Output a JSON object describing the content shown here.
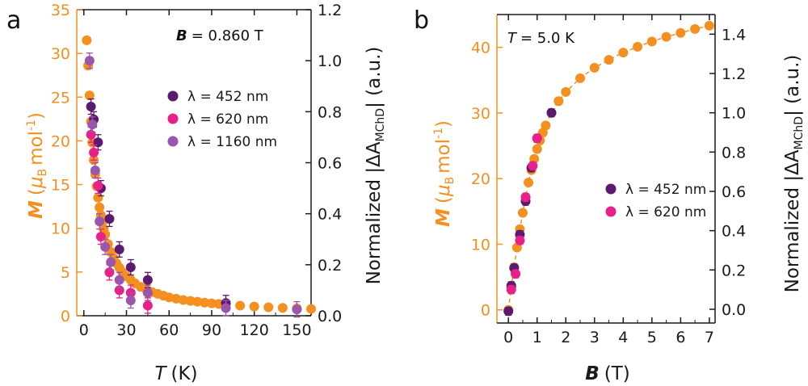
{
  "colors": {
    "magnetization": "#f39020",
    "lambda_452": "#5c1a6e",
    "lambda_620": "#e8208a",
    "lambda_1160": "#9a55ad",
    "axis_black": "#1a1a1a"
  },
  "chart_data": [
    {
      "panel": "a",
      "type": "scatter",
      "annotation": "B = 0.860 T",
      "annotation_var": "B",
      "annotation_value": "= 0.860 T",
      "xlabel_var": "T",
      "xlabel_unit": "(K)",
      "ylabel_left_var": "M",
      "ylabel_left_unit": "(μB mol-1)",
      "ylabel_right": "Normalized |ΔA_MChD| (a.u.)",
      "xlim": [
        -5,
        160
      ],
      "ylim_left": [
        0,
        35
      ],
      "ylim_right": [
        0,
        1.2
      ],
      "xticks": [
        "0",
        "30",
        "60",
        "90",
        "120",
        "150"
      ],
      "xtick_values": [
        0,
        30,
        60,
        90,
        120,
        150
      ],
      "yticks_left": [
        "0",
        "5",
        "10",
        "15",
        "20",
        "25",
        "30",
        "35"
      ],
      "ytick_left_values": [
        0,
        5,
        10,
        15,
        20,
        25,
        30,
        35
      ],
      "yticks_right": [
        "0.0",
        "0.2",
        "0.4",
        "0.6",
        "0.8",
        "1.0",
        "1.2"
      ],
      "ytick_right_values": [
        0,
        0.2,
        0.4,
        0.6,
        0.8,
        1.0,
        1.2
      ],
      "legend": [
        {
          "label": "λ = 452 nm",
          "series": "lambda_452"
        },
        {
          "label": "λ = 620 nm",
          "series": "lambda_620"
        },
        {
          "label": "λ = 1160 nm",
          "series": "lambda_1160"
        }
      ],
      "legend_position": "upper-right",
      "series": [
        {
          "name": "M",
          "axis": "left",
          "color_key": "magnetization",
          "errorbars": false,
          "points": [
            [
              2,
              31.5
            ],
            [
              3,
              28.6
            ],
            [
              4,
              25.2
            ],
            [
              5,
              22.2
            ],
            [
              6,
              19.8
            ],
            [
              7,
              17.8
            ],
            [
              8,
              16.2
            ],
            [
              9,
              14.8
            ],
            [
              10,
              13.5
            ],
            [
              11,
              12.4
            ],
            [
              12,
              11.5
            ],
            [
              13,
              10.7
            ],
            [
              14,
              9.9
            ],
            [
              15,
              9.3
            ],
            [
              17,
              8.2
            ],
            [
              19,
              7.3
            ],
            [
              21,
              6.6
            ],
            [
              23,
              6.0
            ],
            [
              25,
              5.5
            ],
            [
              27,
              5.0
            ],
            [
              30,
              4.5
            ],
            [
              33,
              4.1
            ],
            [
              36,
              3.7
            ],
            [
              40,
              3.3
            ],
            [
              44,
              3.0
            ],
            [
              48,
              2.7
            ],
            [
              52,
              2.5
            ],
            [
              56,
              2.3
            ],
            [
              60,
              2.1
            ],
            [
              65,
              1.95
            ],
            [
              70,
              1.8
            ],
            [
              75,
              1.7
            ],
            [
              80,
              1.6
            ],
            [
              85,
              1.5
            ],
            [
              90,
              1.42
            ],
            [
              95,
              1.35
            ],
            [
              100,
              1.28
            ],
            [
              110,
              1.15
            ],
            [
              120,
              1.05
            ],
            [
              130,
              0.97
            ],
            [
              140,
              0.9
            ],
            [
              150,
              0.84
            ],
            [
              160,
              0.79
            ]
          ]
        },
        {
          "name": "λ = 452 nm",
          "axis": "right",
          "color_key": "lambda_452",
          "errorbars": true,
          "points": [
            [
              5,
              0.82,
              0.03
            ],
            [
              7,
              0.77,
              0.03
            ],
            [
              10,
              0.68,
              0.03
            ],
            [
              12,
              0.5,
              0.03
            ],
            [
              18,
              0.38,
              0.03
            ],
            [
              25,
              0.26,
              0.03
            ],
            [
              33,
              0.19,
              0.03
            ],
            [
              45,
              0.14,
              0.03
            ],
            [
              100,
              0.05,
              0.03
            ]
          ]
        },
        {
          "name": "λ = 620 nm",
          "axis": "right",
          "color_key": "lambda_620",
          "errorbars": true,
          "points": [
            [
              5,
              0.71,
              0.03
            ],
            [
              7,
              0.64,
              0.03
            ],
            [
              10,
              0.51,
              0.03
            ],
            [
              12,
              0.31,
              0.03
            ],
            [
              18,
              0.17,
              0.03
            ],
            [
              25,
              0.1,
              0.03
            ],
            [
              33,
              0.09,
              0.03
            ],
            [
              45,
              0.04,
              0.03
            ]
          ]
        },
        {
          "name": "λ = 1160 nm",
          "axis": "right",
          "color_key": "lambda_1160",
          "errorbars": true,
          "points": [
            [
              4,
              1.0,
              0.03
            ],
            [
              6,
              0.75,
              0.03
            ],
            [
              8,
              0.57,
              0.03
            ],
            [
              11,
              0.37,
              0.03
            ],
            [
              15,
              0.27,
              0.03
            ],
            [
              19,
              0.21,
              0.03
            ],
            [
              25,
              0.14,
              0.03
            ],
            [
              33,
              0.06,
              0.03
            ],
            [
              45,
              0.09,
              0.03
            ],
            [
              100,
              0.03,
              0.03
            ],
            [
              150,
              0.025,
              0.03
            ]
          ]
        }
      ]
    },
    {
      "panel": "b",
      "type": "scatter",
      "annotation": "T = 5.0 K",
      "annotation_var": "T",
      "annotation_value": "= 5.0 K",
      "xlabel_var": "B",
      "xlabel_unit": "(T)",
      "ylabel_left_var": "M",
      "ylabel_left_unit": "(μB mol-1)",
      "ylabel_right": "Normalized |ΔA_MChD| (a.u.)",
      "xlim": [
        -0.4,
        7.2
      ],
      "ylim_left": [
        -2,
        45
      ],
      "ylim_right": [
        -0.07,
        1.5
      ],
      "xticks": [
        "0",
        "1",
        "2",
        "3",
        "4",
        "5",
        "6",
        "7"
      ],
      "xtick_values": [
        0,
        1,
        2,
        3,
        4,
        5,
        6,
        7
      ],
      "yticks_left": [
        "0",
        "10",
        "20",
        "30",
        "40"
      ],
      "ytick_left_values": [
        0,
        10,
        20,
        30,
        40
      ],
      "yticks_right": [
        "0.0",
        "0.2",
        "0.4",
        "0.6",
        "0.8",
        "1.0",
        "1.2",
        "1.4"
      ],
      "ytick_right_values": [
        0,
        0.2,
        0.4,
        0.6,
        0.8,
        1.0,
        1.2,
        1.4
      ],
      "legend": [
        {
          "label": "λ = 452 nm",
          "series": "lambda_452"
        },
        {
          "label": "λ = 620 nm",
          "series": "lambda_620"
        }
      ],
      "legend_position": "right-middle",
      "series": [
        {
          "name": "M",
          "axis": "left",
          "color_key": "magnetization",
          "errorbars": false,
          "dashed_fit": true,
          "points": [
            [
              0,
              0
            ],
            [
              0.1,
              3.5
            ],
            [
              0.2,
              6.5
            ],
            [
              0.3,
              9.5
            ],
            [
              0.4,
              12.3
            ],
            [
              0.5,
              14.8
            ],
            [
              0.6,
              17.2
            ],
            [
              0.7,
              19.4
            ],
            [
              0.8,
              21.3
            ],
            [
              0.9,
              23.0
            ],
            [
              1.0,
              24.5
            ],
            [
              1.1,
              25.8
            ],
            [
              1.2,
              27.0
            ],
            [
              1.3,
              28.1
            ],
            [
              1.5,
              30.0
            ],
            [
              1.75,
              31.8
            ],
            [
              2.0,
              33.2
            ],
            [
              2.5,
              35.3
            ],
            [
              3.0,
              36.9
            ],
            [
              3.5,
              38.1
            ],
            [
              4.0,
              39.2
            ],
            [
              4.5,
              40.1
            ],
            [
              5.0,
              40.9
            ],
            [
              5.5,
              41.6
            ],
            [
              6.0,
              42.2
            ],
            [
              6.5,
              42.8
            ],
            [
              7.0,
              43.3
            ]
          ]
        },
        {
          "name": "λ = 452 nm",
          "axis": "right",
          "color_key": "lambda_452",
          "errorbars": true,
          "points": [
            [
              0,
              -0.01,
              0.02
            ],
            [
              0.1,
              0.12,
              0.02
            ],
            [
              0.2,
              0.21,
              0.02
            ],
            [
              0.4,
              0.38,
              0.02
            ],
            [
              0.6,
              0.55,
              0.02
            ],
            [
              0.8,
              0.72,
              0.02
            ],
            [
              1.0,
              0.87,
              0.02
            ],
            [
              1.5,
              1.0,
              0.02
            ]
          ]
        },
        {
          "name": "λ = 620 nm",
          "axis": "right",
          "color_key": "lambda_620",
          "errorbars": true,
          "points": [
            [
              0.1,
              0.1,
              0.02
            ],
            [
              0.25,
              0.18,
              0.02
            ],
            [
              0.4,
              0.35,
              0.02
            ],
            [
              0.6,
              0.57,
              0.02
            ],
            [
              0.85,
              0.73,
              0.02
            ],
            [
              1.0,
              0.87,
              0.02
            ]
          ]
        }
      ]
    }
  ]
}
